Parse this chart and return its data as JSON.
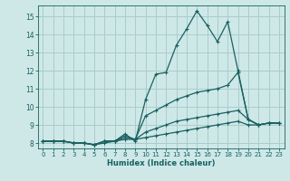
{
  "xlabel": "Humidex (Indice chaleur)",
  "ylabel": "",
  "background_color": "#cee8e8",
  "grid_color": "#aacccc",
  "line_color": "#1a6060",
  "x_values": [
    0,
    1,
    2,
    3,
    4,
    5,
    6,
    7,
    8,
    9,
    10,
    11,
    12,
    13,
    14,
    15,
    16,
    17,
    18,
    19,
    20,
    21,
    22,
    23
  ],
  "series1": [
    8.1,
    8.1,
    8.1,
    8.0,
    8.0,
    7.9,
    8.1,
    8.1,
    8.5,
    8.1,
    10.4,
    11.8,
    11.9,
    13.4,
    14.3,
    15.3,
    14.5,
    13.6,
    14.7,
    12.0,
    9.3,
    9.0,
    9.1,
    9.1
  ],
  "series2": [
    8.1,
    8.1,
    8.1,
    8.0,
    8.0,
    7.9,
    8.1,
    8.1,
    8.4,
    8.2,
    9.5,
    9.8,
    10.1,
    10.4,
    10.6,
    10.8,
    10.9,
    11.0,
    11.2,
    11.9,
    9.3,
    9.0,
    9.1,
    9.1
  ],
  "series3": [
    8.1,
    8.1,
    8.1,
    8.0,
    8.0,
    7.9,
    8.1,
    8.1,
    8.3,
    8.2,
    8.6,
    8.8,
    9.0,
    9.2,
    9.3,
    9.4,
    9.5,
    9.6,
    9.7,
    9.8,
    9.3,
    9.0,
    9.1,
    9.1
  ],
  "series4": [
    8.1,
    8.1,
    8.1,
    8.0,
    8.0,
    7.9,
    8.0,
    8.1,
    8.2,
    8.2,
    8.3,
    8.4,
    8.5,
    8.6,
    8.7,
    8.8,
    8.9,
    9.0,
    9.1,
    9.2,
    9.0,
    9.0,
    9.1,
    9.1
  ],
  "ylim": [
    7.7,
    15.6
  ],
  "xlim": [
    -0.5,
    23.5
  ],
  "yticks": [
    8,
    9,
    10,
    11,
    12,
    13,
    14,
    15
  ],
  "xticks": [
    0,
    1,
    2,
    3,
    4,
    5,
    6,
    7,
    8,
    9,
    10,
    11,
    12,
    13,
    14,
    15,
    16,
    17,
    18,
    19,
    20,
    21,
    22,
    23
  ]
}
